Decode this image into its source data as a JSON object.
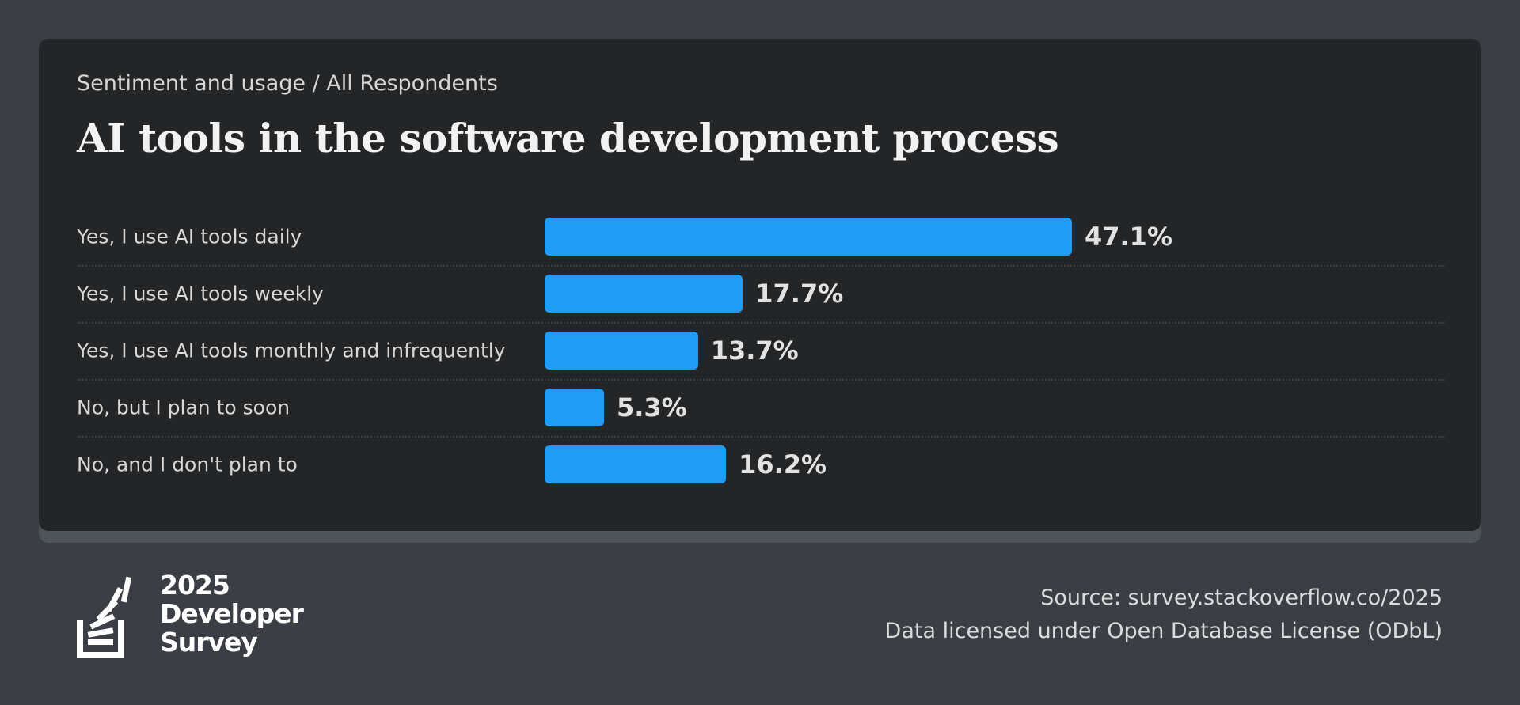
{
  "header": {
    "breadcrumb": "Sentiment and usage / All Respondents",
    "title": "AI tools in the software development process"
  },
  "chart_data": {
    "type": "bar",
    "orientation": "horizontal",
    "title": "AI tools in the software development process",
    "categories": [
      "Yes, I use AI tools daily",
      "Yes, I use AI tools weekly",
      "Yes, I use AI tools monthly and infrequently",
      "No, but I plan to soon",
      "No, and I don't plan to"
    ],
    "values": [
      47.1,
      17.7,
      13.7,
      5.3,
      16.2
    ],
    "value_labels": [
      "47.1%",
      "17.7%",
      "13.7%",
      "5.3%",
      "16.2%"
    ],
    "unit": "%",
    "bar_color": "#1f9cf5",
    "grid": false
  },
  "footer": {
    "logo": {
      "year": "2025",
      "line1": "Developer",
      "line2": "Survey"
    },
    "source": "Source: survey.stackoverflow.co/2025",
    "license": "Data licensed under Open Database License (ODbL)"
  }
}
